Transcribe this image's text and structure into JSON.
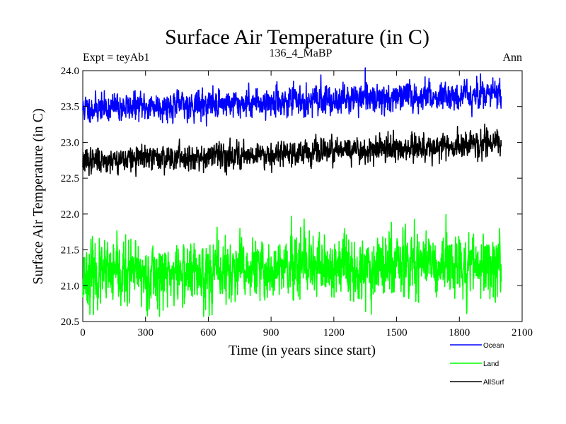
{
  "chart_data": {
    "type": "line",
    "title": "Surface Air Temperature (in C)",
    "subtitle_left": "Expt = teyAb1",
    "subtitle_center": "136_4_MaBP",
    "subtitle_right": "Ann",
    "xlabel": "Time (in years since start)",
    "ylabel": "Surface Air Temperature (in C)",
    "xlim": [
      0,
      2100
    ],
    "ylim": [
      20.5,
      24.0
    ],
    "xticks": [
      0,
      300,
      600,
      900,
      1200,
      1500,
      1800,
      2100
    ],
    "xtick_labels": [
      "0",
      "300",
      "600",
      "900",
      "1200",
      "1500",
      "1800",
      "2100"
    ],
    "yticks": [
      20.5,
      21.0,
      21.5,
      22.0,
      22.5,
      23.0,
      23.5,
      24.0
    ],
    "ytick_labels": [
      "20.5",
      "21.0",
      "21.5",
      "22.0",
      "22.5",
      "23.0",
      "23.5",
      "24.0"
    ],
    "x_range": [
      0,
      2000
    ],
    "series": [
      {
        "name": "Ocean",
        "color": "#0000ff",
        "mean_start": 23.47,
        "mean_end": 23.68,
        "noise": 0.09,
        "seed": 11
      },
      {
        "name": "Land",
        "color": "#00ff00",
        "mean_start": 21.13,
        "mean_end": 21.32,
        "noise": 0.2,
        "seed": 23
      },
      {
        "name": "AllSurf",
        "color": "#000000",
        "mean_start": 22.74,
        "mean_end": 22.97,
        "noise": 0.08,
        "seed": 37
      }
    ],
    "legend_position": "bottom-right"
  }
}
